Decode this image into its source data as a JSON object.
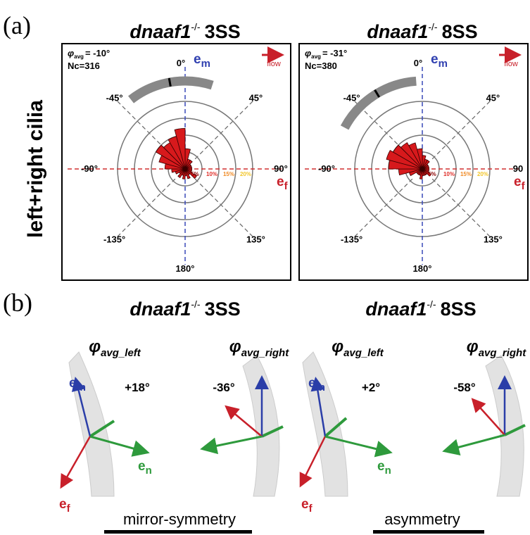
{
  "panel_a": {
    "label": "(a)",
    "row_label": "left+right cilia",
    "plots": [
      {
        "gene": "dnaaf1",
        "genotype": "-/-",
        "stage": "3SS",
        "phi": "φ",
        "phi_sub": "avg",
        "phi_avg": {
          "value": -10,
          "label": "= -10°"
        },
        "nc": "Nc=316",
        "flow": "flow",
        "em": "e",
        "em_sub": "m",
        "ef": "e",
        "ef_sub": "f",
        "angle_labels": [
          {
            "value": 0,
            "label": "0°"
          },
          {
            "value": 45,
            "label": "45°"
          },
          {
            "value": 90,
            "label": "90°"
          },
          {
            "value": 135,
            "label": "135°"
          },
          {
            "value": 180,
            "label": "180°"
          },
          {
            "value": -135,
            "label": "-135°"
          },
          {
            "value": -90,
            "label": "-90°"
          },
          {
            "value": -45,
            "label": "-45°"
          }
        ],
        "rings": [
          {
            "value": 5,
            "label": "5%",
            "color": "#8b0000"
          },
          {
            "value": 10,
            "label": "10%",
            "color": "#e0302a"
          },
          {
            "value": 15,
            "label": "15%",
            "color": "#f08a24"
          },
          {
            "value": 20,
            "label": "20%",
            "color": "#f2c62a"
          }
        ],
        "spread": [
          -38,
          18
        ],
        "petal_color": "#d7191c",
        "petals": [
          6,
          3,
          3,
          2,
          2,
          2,
          2,
          2,
          4,
          2,
          3,
          2,
          3,
          2,
          3,
          2,
          3,
          4,
          6,
          8,
          10,
          9,
          10,
          12
        ]
      },
      {
        "gene": "dnaaf1",
        "genotype": "-/-",
        "stage": "8SS",
        "phi": "φ",
        "phi_sub": "avg",
        "phi_avg": {
          "value": -31,
          "label": "= -31°"
        },
        "nc": "Nc=380",
        "flow": "flow",
        "em": "e",
        "em_sub": "m",
        "ef": "e",
        "ef_sub": "f",
        "angle_labels": [
          {
            "value": 0,
            "label": "0°"
          },
          {
            "value": 45,
            "label": "45°"
          },
          {
            "value": 90,
            "label": "90"
          },
          {
            "value": 135,
            "label": "135°"
          },
          {
            "value": 180,
            "label": "180°"
          },
          {
            "value": -135,
            "label": "-135°"
          },
          {
            "value": -90,
            "label": "-90°"
          },
          {
            "value": -45,
            "label": "-45°"
          }
        ],
        "rings": [
          {
            "value": 5,
            "label": "5%",
            "color": "#8b0000"
          },
          {
            "value": 10,
            "label": "10%",
            "color": "#e0302a"
          },
          {
            "value": 15,
            "label": "15%",
            "color": "#f08a24"
          },
          {
            "value": 20,
            "label": "20%",
            "color": "#f2c62a"
          }
        ],
        "spread": [
          -62,
          -4
        ],
        "petal_color": "#d7191c",
        "petals": [
          4,
          3,
          3,
          2,
          2,
          2,
          2,
          2,
          3,
          2,
          2,
          2,
          3,
          2,
          2,
          2,
          4,
          7,
          10,
          11,
          10,
          9,
          8,
          6
        ]
      }
    ]
  },
  "panel_b": {
    "label": "(b)",
    "groups": [
      {
        "gene": "dnaaf1",
        "genotype": "-/-",
        "stage": "3SS",
        "symmetry": "mirror-symmetry",
        "sides": [
          {
            "phi": "φ",
            "sub": "avg_left",
            "angle": "+18°"
          },
          {
            "phi": "φ",
            "sub": "avg_right",
            "angle": "-36°"
          }
        ],
        "axes": [
          {
            "base": "e",
            "sub": "m"
          },
          {
            "base": "e",
            "sub": "f"
          },
          {
            "base": "e",
            "sub": "n"
          }
        ]
      },
      {
        "gene": "dnaaf1",
        "genotype": "-/-",
        "stage": "8SS",
        "symmetry": "asymmetry",
        "sides": [
          {
            "phi": "φ",
            "sub": "avg_left",
            "angle": "+2°"
          },
          {
            "phi": "φ",
            "sub": "avg_right",
            "angle": "-58°"
          }
        ],
        "axes": [
          {
            "base": "e",
            "sub": "m"
          },
          {
            "base": "e",
            "sub": "f"
          },
          {
            "base": "e",
            "sub": "n"
          }
        ]
      }
    ]
  }
}
